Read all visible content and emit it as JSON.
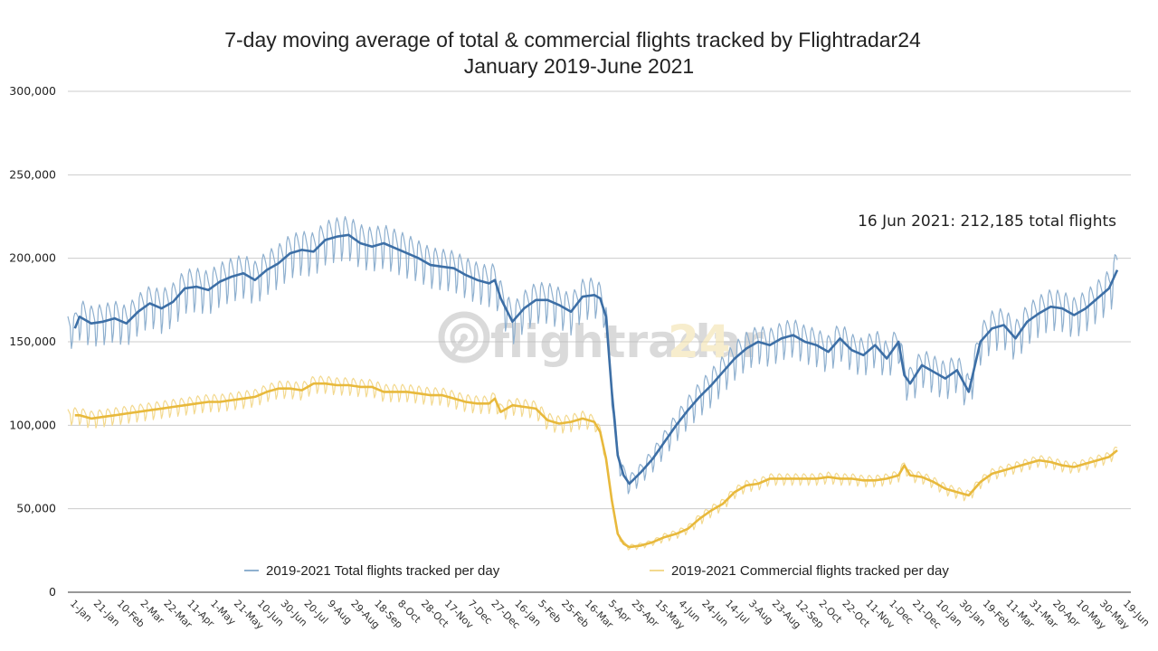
{
  "chart_data": {
    "type": "line",
    "title": "7-day moving average of total & commercial flights tracked by Flightradar24",
    "subtitle": "January 2019-June 2021",
    "xlabel": "",
    "ylabel": "",
    "ylim": [
      0,
      300000
    ],
    "yticks": [
      0,
      50000,
      100000,
      150000,
      200000,
      250000,
      300000
    ],
    "ytick_labels": [
      "0",
      "50,000",
      "100,000",
      "150,000",
      "200,000",
      "250,000",
      "300,000"
    ],
    "grid": true,
    "legend_position": "bottom",
    "x_start_date": "2019-01-01",
    "x_end_day": 897,
    "x_tick_step_days": 20,
    "xtick_labels": [
      "1-Jan",
      "21-Jan",
      "10-Feb",
      "2-Mar",
      "22-Mar",
      "11-Apr",
      "1-May",
      "21-May",
      "10-Jun",
      "30-Jun",
      "20-Jul",
      "9-Aug",
      "29-Aug",
      "18-Sep",
      "8-Oct",
      "28-Oct",
      "17-Nov",
      "7-Dec",
      "27-Dec",
      "16-Jan",
      "5-Feb",
      "25-Feb",
      "16-Mar",
      "5-Apr",
      "25-Apr",
      "15-May",
      "4-Jun",
      "24-Jun",
      "14-Jul",
      "3-Aug",
      "23-Aug",
      "12-Sep",
      "2-Oct",
      "22-Oct",
      "11-Nov",
      "1-Dec",
      "21-Dec",
      "10-Jan",
      "30-Jan",
      "19-Feb",
      "11-Mar",
      "31-Mar",
      "20-Apr",
      "10-May",
      "30-May",
      "19-Jun"
    ],
    "annotation": "16 Jun 2021: 212,185 total flights",
    "series": [
      {
        "name": "2019-2021 Total flights tracked per day (7-day avg)",
        "legend": "2019-2021 Total flights tracked per day",
        "color": "#3d6fa6",
        "daily_color": "#8fb0cf",
        "x_days": [
          6,
          10,
          20,
          30,
          40,
          50,
          60,
          70,
          80,
          90,
          100,
          110,
          120,
          130,
          140,
          150,
          160,
          170,
          180,
          190,
          200,
          210,
          220,
          230,
          240,
          250,
          260,
          270,
          280,
          290,
          300,
          310,
          320,
          330,
          340,
          350,
          360,
          365,
          370,
          380,
          390,
          400,
          410,
          420,
          430,
          440,
          450,
          455,
          460,
          465,
          470,
          475,
          480,
          490,
          500,
          510,
          520,
          530,
          540,
          550,
          560,
          570,
          580,
          590,
          600,
          610,
          620,
          630,
          640,
          650,
          660,
          670,
          680,
          690,
          700,
          710,
          715,
          720,
          730,
          740,
          750,
          760,
          770,
          780,
          790,
          800,
          810,
          820,
          830,
          840,
          850,
          860,
          870,
          880,
          890,
          897
        ],
        "values": [
          158000,
          165000,
          161000,
          162000,
          164000,
          161000,
          168000,
          173000,
          170000,
          174000,
          182000,
          183000,
          181000,
          186000,
          189000,
          191000,
          187000,
          193000,
          197000,
          203000,
          205000,
          204000,
          211000,
          213000,
          214000,
          209000,
          207000,
          209000,
          206000,
          203000,
          200000,
          196000,
          195000,
          194000,
          190000,
          187000,
          185000,
          187000,
          176000,
          162000,
          170000,
          175000,
          175000,
          172000,
          168000,
          177000,
          178000,
          176000,
          165000,
          120000,
          82000,
          70000,
          65000,
          72000,
          80000,
          90000,
          100000,
          109000,
          117000,
          124000,
          132000,
          140000,
          146000,
          150000,
          148000,
          152000,
          154000,
          150000,
          148000,
          144000,
          152000,
          145000,
          142000,
          148000,
          140000,
          150000,
          130000,
          125000,
          136000,
          132000,
          128000,
          133000,
          120000,
          150000,
          158000,
          160000,
          152000,
          162000,
          167000,
          171000,
          170000,
          166000,
          170000,
          176000,
          182000,
          193000
        ],
        "weekly_swing": [
          12000,
          14000,
          14000,
          14000,
          14000,
          14000,
          14000,
          14000,
          15000,
          15000,
          15000,
          15000,
          15000,
          15000,
          15000,
          15000,
          15000,
          15000,
          15000,
          15000,
          15000,
          15000,
          15000,
          15000,
          15000,
          15000,
          15000,
          15000,
          15000,
          15000,
          14000,
          14000,
          14000,
          14000,
          14000,
          14000,
          14000,
          14000,
          14000,
          14000,
          14000,
          14000,
          14000,
          14000,
          14000,
          14000,
          14000,
          12000,
          10000,
          8000,
          8000,
          7000,
          7000,
          7000,
          8000,
          9000,
          10000,
          11000,
          12000,
          13000,
          13000,
          13000,
          13000,
          13000,
          13000,
          13000,
          13000,
          13000,
          13000,
          13000,
          13000,
          13000,
          13000,
          13000,
          13000,
          13000,
          13000,
          13000,
          13000,
          13000,
          13000,
          13000,
          13000,
          14000,
          14000,
          14000,
          14000,
          14000,
          14000,
          14000,
          14000,
          14000,
          14000,
          14000,
          15000,
          17000
        ]
      },
      {
        "name": "2019-2021 Commercial flights tracked per day (7-day avg)",
        "legend": "2019-2021 Commercial flights tracked per day",
        "color": "#e8b93c",
        "daily_color": "#f3d98f",
        "x_days": [
          6,
          10,
          20,
          30,
          40,
          50,
          60,
          70,
          80,
          90,
          100,
          110,
          120,
          130,
          140,
          150,
          160,
          170,
          180,
          190,
          200,
          210,
          220,
          230,
          240,
          250,
          260,
          270,
          280,
          290,
          300,
          310,
          320,
          330,
          340,
          350,
          360,
          365,
          370,
          380,
          390,
          400,
          410,
          420,
          430,
          440,
          450,
          455,
          460,
          465,
          470,
          475,
          480,
          490,
          500,
          510,
          520,
          530,
          540,
          550,
          560,
          570,
          580,
          590,
          600,
          610,
          620,
          630,
          640,
          650,
          660,
          670,
          680,
          690,
          700,
          710,
          715,
          720,
          730,
          740,
          750,
          760,
          770,
          780,
          790,
          800,
          810,
          820,
          830,
          840,
          850,
          860,
          870,
          880,
          890,
          897
        ],
        "values": [
          106000,
          106000,
          104000,
          105000,
          106000,
          107000,
          108000,
          109000,
          110000,
          111000,
          112000,
          113000,
          114000,
          114000,
          115000,
          116000,
          117000,
          120000,
          122000,
          122000,
          121000,
          125000,
          125000,
          124000,
          124000,
          123000,
          123000,
          120000,
          120000,
          120000,
          119000,
          118000,
          118000,
          116000,
          114000,
          113000,
          113000,
          116000,
          108000,
          112000,
          111000,
          110000,
          103000,
          101000,
          102000,
          104000,
          102000,
          96000,
          80000,
          55000,
          35000,
          29000,
          27000,
          28000,
          30000,
          33000,
          35000,
          38000,
          44000,
          49000,
          53000,
          60000,
          64000,
          65000,
          68000,
          68000,
          68000,
          68000,
          68000,
          69000,
          68000,
          68000,
          67000,
          67000,
          68000,
          70000,
          76000,
          70000,
          69000,
          66000,
          62000,
          60000,
          58000,
          66000,
          71000,
          73000,
          75000,
          77000,
          79000,
          78000,
          76000,
          75000,
          77000,
          79000,
          81000,
          85000
        ],
        "weekly_swing": [
          6000,
          6000,
          6000,
          6000,
          6000,
          6000,
          6000,
          6000,
          6000,
          6000,
          6000,
          6000,
          6000,
          6000,
          6000,
          6000,
          6000,
          6000,
          6000,
          6000,
          6000,
          6000,
          6000,
          6000,
          6000,
          6000,
          6000,
          6000,
          6000,
          6000,
          6000,
          6000,
          6000,
          6000,
          6000,
          6000,
          6000,
          6000,
          6000,
          6000,
          6000,
          6000,
          6000,
          6000,
          6000,
          6000,
          5000,
          4000,
          3000,
          2000,
          2000,
          2000,
          2000,
          2000,
          2000,
          3000,
          3000,
          3000,
          4000,
          4000,
          4000,
          4000,
          4000,
          4000,
          4000,
          4000,
          4000,
          4000,
          4000,
          4000,
          4000,
          4000,
          4000,
          4000,
          4000,
          4000,
          4000,
          4000,
          4000,
          4000,
          4000,
          4000,
          4000,
          4000,
          4000,
          4000,
          4000,
          4000,
          4000,
          4000,
          4000,
          4000,
          4000,
          4000,
          4000,
          4000
        ]
      }
    ]
  },
  "watermark": {
    "text_main": "flightradar",
    "text_suffix": "24"
  }
}
